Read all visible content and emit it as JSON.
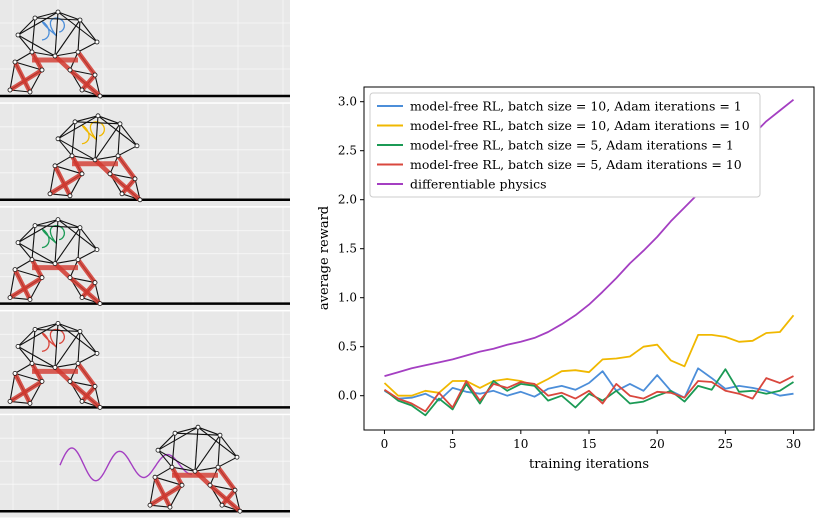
{
  "chart_data": {
    "type": "line",
    "title": "",
    "xlabel": "training iterations",
    "ylabel": "average reward",
    "xlim": [
      -1.5,
      31.5
    ],
    "ylim": [
      -0.35,
      3.15
    ],
    "xticks": [
      0,
      5,
      10,
      15,
      20,
      25,
      30
    ],
    "yticks": [
      0.0,
      0.5,
      1.0,
      1.5,
      2.0,
      2.5,
      3.0
    ],
    "ytick_labels": [
      "0.0",
      "0.5",
      "1.0",
      "1.5",
      "2.0",
      "2.5",
      "3.0"
    ],
    "legend_position": "top-left",
    "grid": false,
    "x": [
      0,
      1,
      2,
      3,
      4,
      5,
      6,
      7,
      8,
      9,
      10,
      11,
      12,
      13,
      14,
      15,
      16,
      17,
      18,
      19,
      20,
      21,
      22,
      23,
      24,
      25,
      26,
      27,
      28,
      29,
      30
    ],
    "series": [
      {
        "name": "model-free RL, batch size = 10, Adam iterations = 1",
        "color": "#4c8ed9",
        "values": [
          0.05,
          -0.03,
          -0.02,
          0.02,
          -0.05,
          0.08,
          0.04,
          0.02,
          0.05,
          0.0,
          0.04,
          -0.01,
          0.07,
          0.1,
          0.06,
          0.13,
          0.25,
          0.05,
          0.12,
          0.05,
          0.21,
          0.05,
          -0.02,
          0.28,
          0.18,
          0.07,
          0.1,
          0.08,
          0.05,
          0.0,
          0.02
        ]
      },
      {
        "name": "model-free RL, batch size = 10, Adam iterations = 10",
        "color": "#f0b800",
        "values": [
          0.13,
          0.0,
          0.0,
          0.05,
          0.03,
          0.15,
          0.15,
          0.08,
          0.15,
          0.17,
          0.15,
          0.1,
          0.17,
          0.25,
          0.26,
          0.24,
          0.37,
          0.38,
          0.4,
          0.5,
          0.52,
          0.36,
          0.3,
          0.62,
          0.62,
          0.6,
          0.55,
          0.56,
          0.64,
          0.65,
          0.82
        ]
      },
      {
        "name": "model-free RL, batch size = 5, Adam iterations = 1",
        "color": "#1b9a55",
        "values": [
          0.06,
          -0.05,
          -0.1,
          -0.2,
          -0.03,
          -0.14,
          0.12,
          -0.08,
          0.15,
          0.05,
          0.12,
          0.1,
          -0.05,
          0.0,
          -0.12,
          0.02,
          -0.05,
          0.05,
          -0.08,
          -0.06,
          0.0,
          0.05,
          -0.06,
          0.1,
          0.06,
          0.27,
          0.04,
          0.05,
          0.02,
          0.05,
          0.14
        ]
      },
      {
        "name": "model-free RL, batch size = 5, Adam iterations = 10",
        "color": "#d9473d",
        "values": [
          0.06,
          -0.03,
          -0.08,
          -0.16,
          0.03,
          -0.12,
          0.15,
          -0.05,
          0.12,
          0.08,
          0.14,
          0.12,
          0.0,
          0.03,
          -0.03,
          0.05,
          -0.08,
          0.12,
          0.0,
          -0.03,
          0.04,
          0.03,
          -0.02,
          0.15,
          0.14,
          0.05,
          0.02,
          -0.03,
          0.18,
          0.13,
          0.2
        ]
      },
      {
        "name": "differentiable physics",
        "color": "#a43fc2",
        "values": [
          0.2,
          0.24,
          0.28,
          0.31,
          0.34,
          0.37,
          0.41,
          0.45,
          0.48,
          0.52,
          0.55,
          0.59,
          0.65,
          0.73,
          0.82,
          0.93,
          1.06,
          1.2,
          1.35,
          1.48,
          1.62,
          1.78,
          1.92,
          2.06,
          2.2,
          2.35,
          2.5,
          2.66,
          2.8,
          2.91,
          3.02
        ]
      }
    ]
  },
  "robot_panels": [
    {
      "trace_color": "#4c8ed9"
    },
    {
      "trace_color": "#f0b800"
    },
    {
      "trace_color": "#1b9a55"
    },
    {
      "trace_color": "#d9473d"
    },
    {
      "trace_color": "#a43fc2"
    }
  ]
}
